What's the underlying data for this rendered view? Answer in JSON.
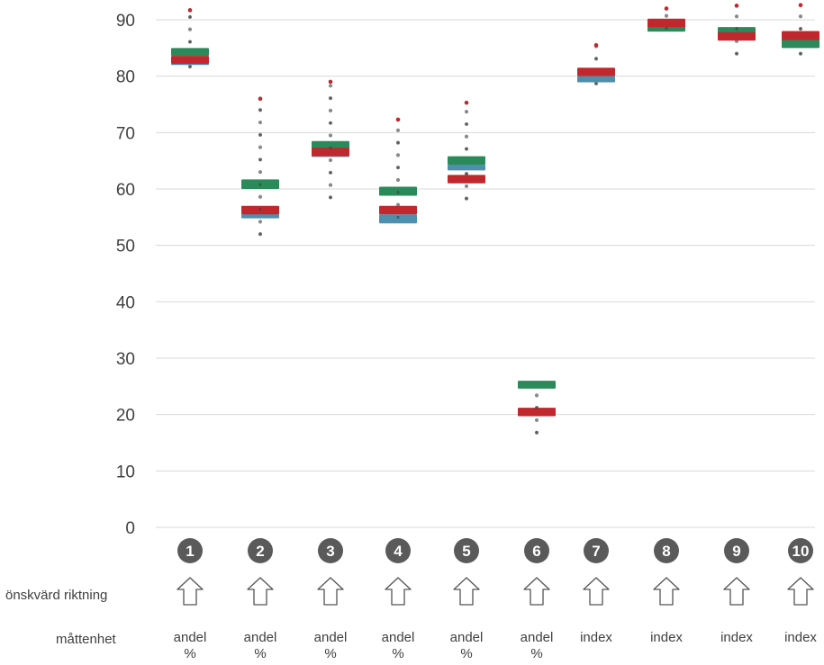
{
  "chart_data": {
    "type": "box",
    "ylim": [
      0,
      90
    ],
    "yticks": [
      0,
      10,
      20,
      30,
      40,
      50,
      60,
      70,
      80,
      90
    ],
    "grid": true,
    "colors": {
      "green": "#2a8a5a",
      "red": "#c0282e",
      "blue": "#4f8fae",
      "dot": "#8a8a8a",
      "max": "#c0282e",
      "badge": "#5a5a5a"
    },
    "categories": [
      "1",
      "2",
      "3",
      "4",
      "5",
      "6",
      "7",
      "8",
      "9",
      "10"
    ],
    "items": [
      {
        "num": "1",
        "range": [
          81.7,
          91.7
        ],
        "green": [
          83.6,
          85.0
        ],
        "red": [
          82.2,
          83.6
        ],
        "blue": [
          82.0,
          82.3
        ],
        "unit_line1": "andel",
        "unit_line2": "%"
      },
      {
        "num": "2",
        "range": [
          52.0,
          76.0
        ],
        "green": [
          60.0,
          61.7
        ],
        "red": [
          55.5,
          57.0
        ],
        "blue": [
          54.8,
          55.6
        ],
        "unit_line1": "andel",
        "unit_line2": "%"
      },
      {
        "num": "3",
        "range": [
          58.5,
          79.0
        ],
        "green": [
          67.0,
          68.5
        ],
        "red": [
          65.8,
          67.3
        ],
        "blue": [
          65.8,
          66.0
        ],
        "unit_line1": "andel",
        "unit_line2": "%"
      },
      {
        "num": "4",
        "range": [
          55.0,
          72.3
        ],
        "green": [
          58.8,
          60.4
        ],
        "red": [
          55.5,
          57.0
        ],
        "blue": [
          53.9,
          55.5
        ],
        "unit_line1": "andel",
        "unit_line2": "%"
      },
      {
        "num": "5",
        "range": [
          58.3,
          75.3
        ],
        "green": [
          64.3,
          65.8
        ],
        "red": [
          61.0,
          62.5
        ],
        "blue": [
          63.3,
          64.3
        ],
        "unit_line1": "andel",
        "unit_line2": "%"
      },
      {
        "num": "6",
        "range": [
          16.8,
          25.3
        ],
        "green": [
          24.6,
          26.0
        ],
        "red": [
          19.7,
          21.2
        ],
        "blue": null,
        "unit_line1": "andel",
        "unit_line2": "%"
      },
      {
        "num": "7",
        "range": [
          78.7,
          85.5
        ],
        "green": null,
        "red": [
          80.0,
          81.5
        ],
        "blue": [
          78.9,
          80.0
        ],
        "unit_line1": "index",
        "unit_line2": ""
      },
      {
        "num": "8",
        "range": [
          88.5,
          92.0
        ],
        "green": [
          87.9,
          89.4
        ],
        "red": [
          88.7,
          90.2
        ],
        "blue": null,
        "unit_line1": "index",
        "unit_line2": ""
      },
      {
        "num": "9",
        "range": [
          84.0,
          92.5
        ],
        "green": [
          87.2,
          88.7
        ],
        "red": [
          86.3,
          87.8
        ],
        "blue": null,
        "unit_line1": "index",
        "unit_line2": ""
      },
      {
        "num": "10",
        "range": [
          84.0,
          92.6
        ],
        "green": [
          85.0,
          86.6
        ],
        "red": [
          86.4,
          88.0
        ],
        "blue": null,
        "unit_line1": "index",
        "unit_line2": ""
      }
    ]
  },
  "rows": {
    "direction_label": "önskvärd riktning",
    "unit_label": "måttenhet"
  }
}
